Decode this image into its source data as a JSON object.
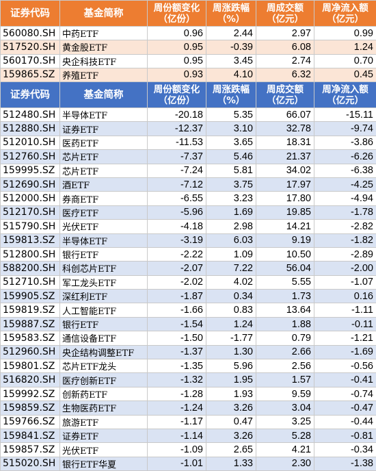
{
  "top_table": {
    "headers": [
      "证券代码",
      "基金简称",
      "周份额变化\n（亿份）",
      "周涨跌幅\n（%）",
      "周成交额\n（亿元）",
      "周净流入额\n（亿元）"
    ],
    "rows": [
      [
        "560080.SH",
        "中药ETF",
        "0.96",
        "2.44",
        "2.97",
        "0.99"
      ],
      [
        "517520.SH",
        "黄金股ETF",
        "0.95",
        "-0.39",
        "6.08",
        "1.24"
      ],
      [
        "560170.SH",
        "央企科技ETF",
        "0.95",
        "3.45",
        "2.74",
        "0.70"
      ],
      [
        "159865.SZ",
        "养殖ETF",
        "0.93",
        "4.10",
        "6.32",
        "0.45"
      ]
    ]
  },
  "bottom_table": {
    "headers": [
      "证券代码",
      "基金简称",
      "周份额变化\n（亿份）",
      "周涨跌幅\n（%）",
      "周成交额\n（亿元）",
      "周净流入额\n（亿元）"
    ],
    "rows": [
      [
        "512480.SH",
        "半导体ETF",
        "-20.18",
        "5.35",
        "66.07",
        "-15.11"
      ],
      [
        "512880.SH",
        "证券ETF",
        "-12.37",
        "3.10",
        "32.78",
        "-9.74"
      ],
      [
        "512010.SH",
        "医药ETF",
        "-11.53",
        "3.65",
        "18.31",
        "-3.86"
      ],
      [
        "512760.SH",
        "芯片ETF",
        "-7.37",
        "5.46",
        "21.37",
        "-6.26"
      ],
      [
        "159995.SZ",
        "芯片ETF",
        "-7.24",
        "5.81",
        "34.02",
        "-6.38"
      ],
      [
        "512690.SH",
        "酒ETF",
        "-7.12",
        "3.75",
        "17.97",
        "-4.25"
      ],
      [
        "512000.SH",
        "券商ETF",
        "-6.55",
        "3.23",
        "17.80",
        "-4.94"
      ],
      [
        "512170.SH",
        "医疗ETF",
        "-5.96",
        "1.69",
        "19.85",
        "-1.78"
      ],
      [
        "515790.SH",
        "光伏ETF",
        "-4.18",
        "2.98",
        "14.21",
        "-2.82"
      ],
      [
        "159813.SZ",
        "半导体ETF",
        "-3.19",
        "6.03",
        "9.19",
        "-1.82"
      ],
      [
        "512800.SH",
        "银行ETF",
        "-2.22",
        "1.09",
        "10.50",
        "-2.89"
      ],
      [
        "588200.SH",
        "科创芯片ETF",
        "-2.07",
        "7.22",
        "56.04",
        "-2.00"
      ],
      [
        "512710.SH",
        "军工龙头ETF",
        "-2.02",
        "4.02",
        "5.55",
        "-1.07"
      ],
      [
        "159905.SZ",
        "深红利ETF",
        "-1.87",
        "0.34",
        "1.73",
        "0.16"
      ],
      [
        "159819.SZ",
        "人工智能ETF",
        "-1.66",
        "0.83",
        "13.64",
        "-1.11"
      ],
      [
        "159887.SZ",
        "银行ETF",
        "-1.54",
        "1.24",
        "1.88",
        "-0.11"
      ],
      [
        "159583.SZ",
        "通信设备ETF",
        "-1.50",
        "-1.77",
        "0.79",
        "-1.21"
      ],
      [
        "512960.SH",
        "央企结构调整ETF",
        "-1.37",
        "1.30",
        "2.66",
        "-1.69"
      ],
      [
        "159801.SZ",
        "芯片ETF龙头",
        "-1.35",
        "5.96",
        "2.56",
        "-0.56"
      ],
      [
        "516820.SH",
        "医疗创新ETF",
        "-1.32",
        "1.95",
        "1.57",
        "-0.41"
      ],
      [
        "159992.SZ",
        "创新药ETF",
        "-1.28",
        "1.93",
        "9.59",
        "-0.74"
      ],
      [
        "159859.SZ",
        "生物医药ETF",
        "-1.24",
        "3.26",
        "3.04",
        "-0.47"
      ],
      [
        "159766.SZ",
        "旅游ETF",
        "-1.17",
        "0.47",
        "3.25",
        "-0.44"
      ],
      [
        "159841.SZ",
        "证券ETF",
        "-1.14",
        "3.26",
        "5.28",
        "-0.81"
      ],
      [
        "159857.SZ",
        "光伏ETF",
        "-1.09",
        "2.65",
        "4.21",
        "-0.34"
      ],
      [
        "515020.SH",
        "银行ETF华夏",
        "-1.01",
        "1.33",
        "2.30",
        "-1.38"
      ]
    ]
  }
}
